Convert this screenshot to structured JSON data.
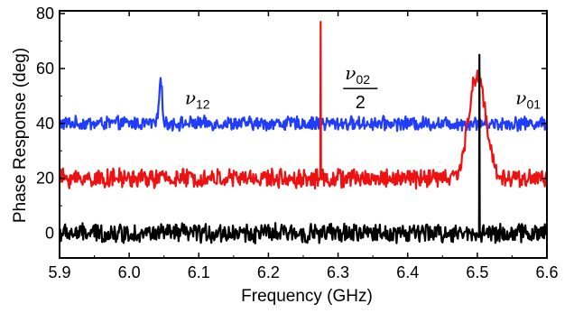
{
  "chart_data": {
    "type": "line",
    "xlabel": "Frequency (GHz)",
    "ylabel": "Phase Response (deg)",
    "xlim": [
      5.9,
      6.6
    ],
    "ylim": [
      -9,
      81
    ],
    "x_ticks": [
      5.9,
      6.0,
      6.1,
      6.2,
      6.3,
      6.4,
      6.5,
      6.6
    ],
    "x_tick_labels": [
      "5.9",
      "6.0",
      "6.1",
      "6.2",
      "6.3",
      "6.4",
      "6.5",
      "6.6"
    ],
    "y_ticks": [
      0,
      20,
      40,
      60,
      80
    ],
    "y_tick_labels": [
      "0",
      "20",
      "40",
      "60",
      "80"
    ],
    "grid": false,
    "series": [
      {
        "key": "blue",
        "color": "#1f3cff",
        "baseline": 40,
        "noise": 2.2,
        "peaks": [
          {
            "x": 6.045,
            "y": 58
          }
        ]
      },
      {
        "key": "red",
        "color": "#ee1111",
        "baseline": 20,
        "noise": 3.0,
        "spike": {
          "x": 6.275,
          "y": 77
        },
        "peaks": [
          {
            "x": 6.5,
            "y": 58,
            "width": 0.012
          }
        ]
      },
      {
        "key": "black",
        "color": "#000000",
        "baseline": 0,
        "noise": 3.0,
        "spike": {
          "x": 6.503,
          "y": 65
        },
        "peaks": []
      }
    ],
    "annotations": [
      {
        "key": "nu12",
        "symbol": "ν",
        "subscript": "12",
        "x": 6.08,
        "y": 47
      },
      {
        "key": "nu02",
        "symbol": "ν",
        "subscript": "02",
        "denominator": "2",
        "x": 6.31,
        "y": 56
      },
      {
        "key": "nu01",
        "symbol": "ν",
        "subscript": "01",
        "x": 6.555,
        "y": 47
      }
    ]
  }
}
